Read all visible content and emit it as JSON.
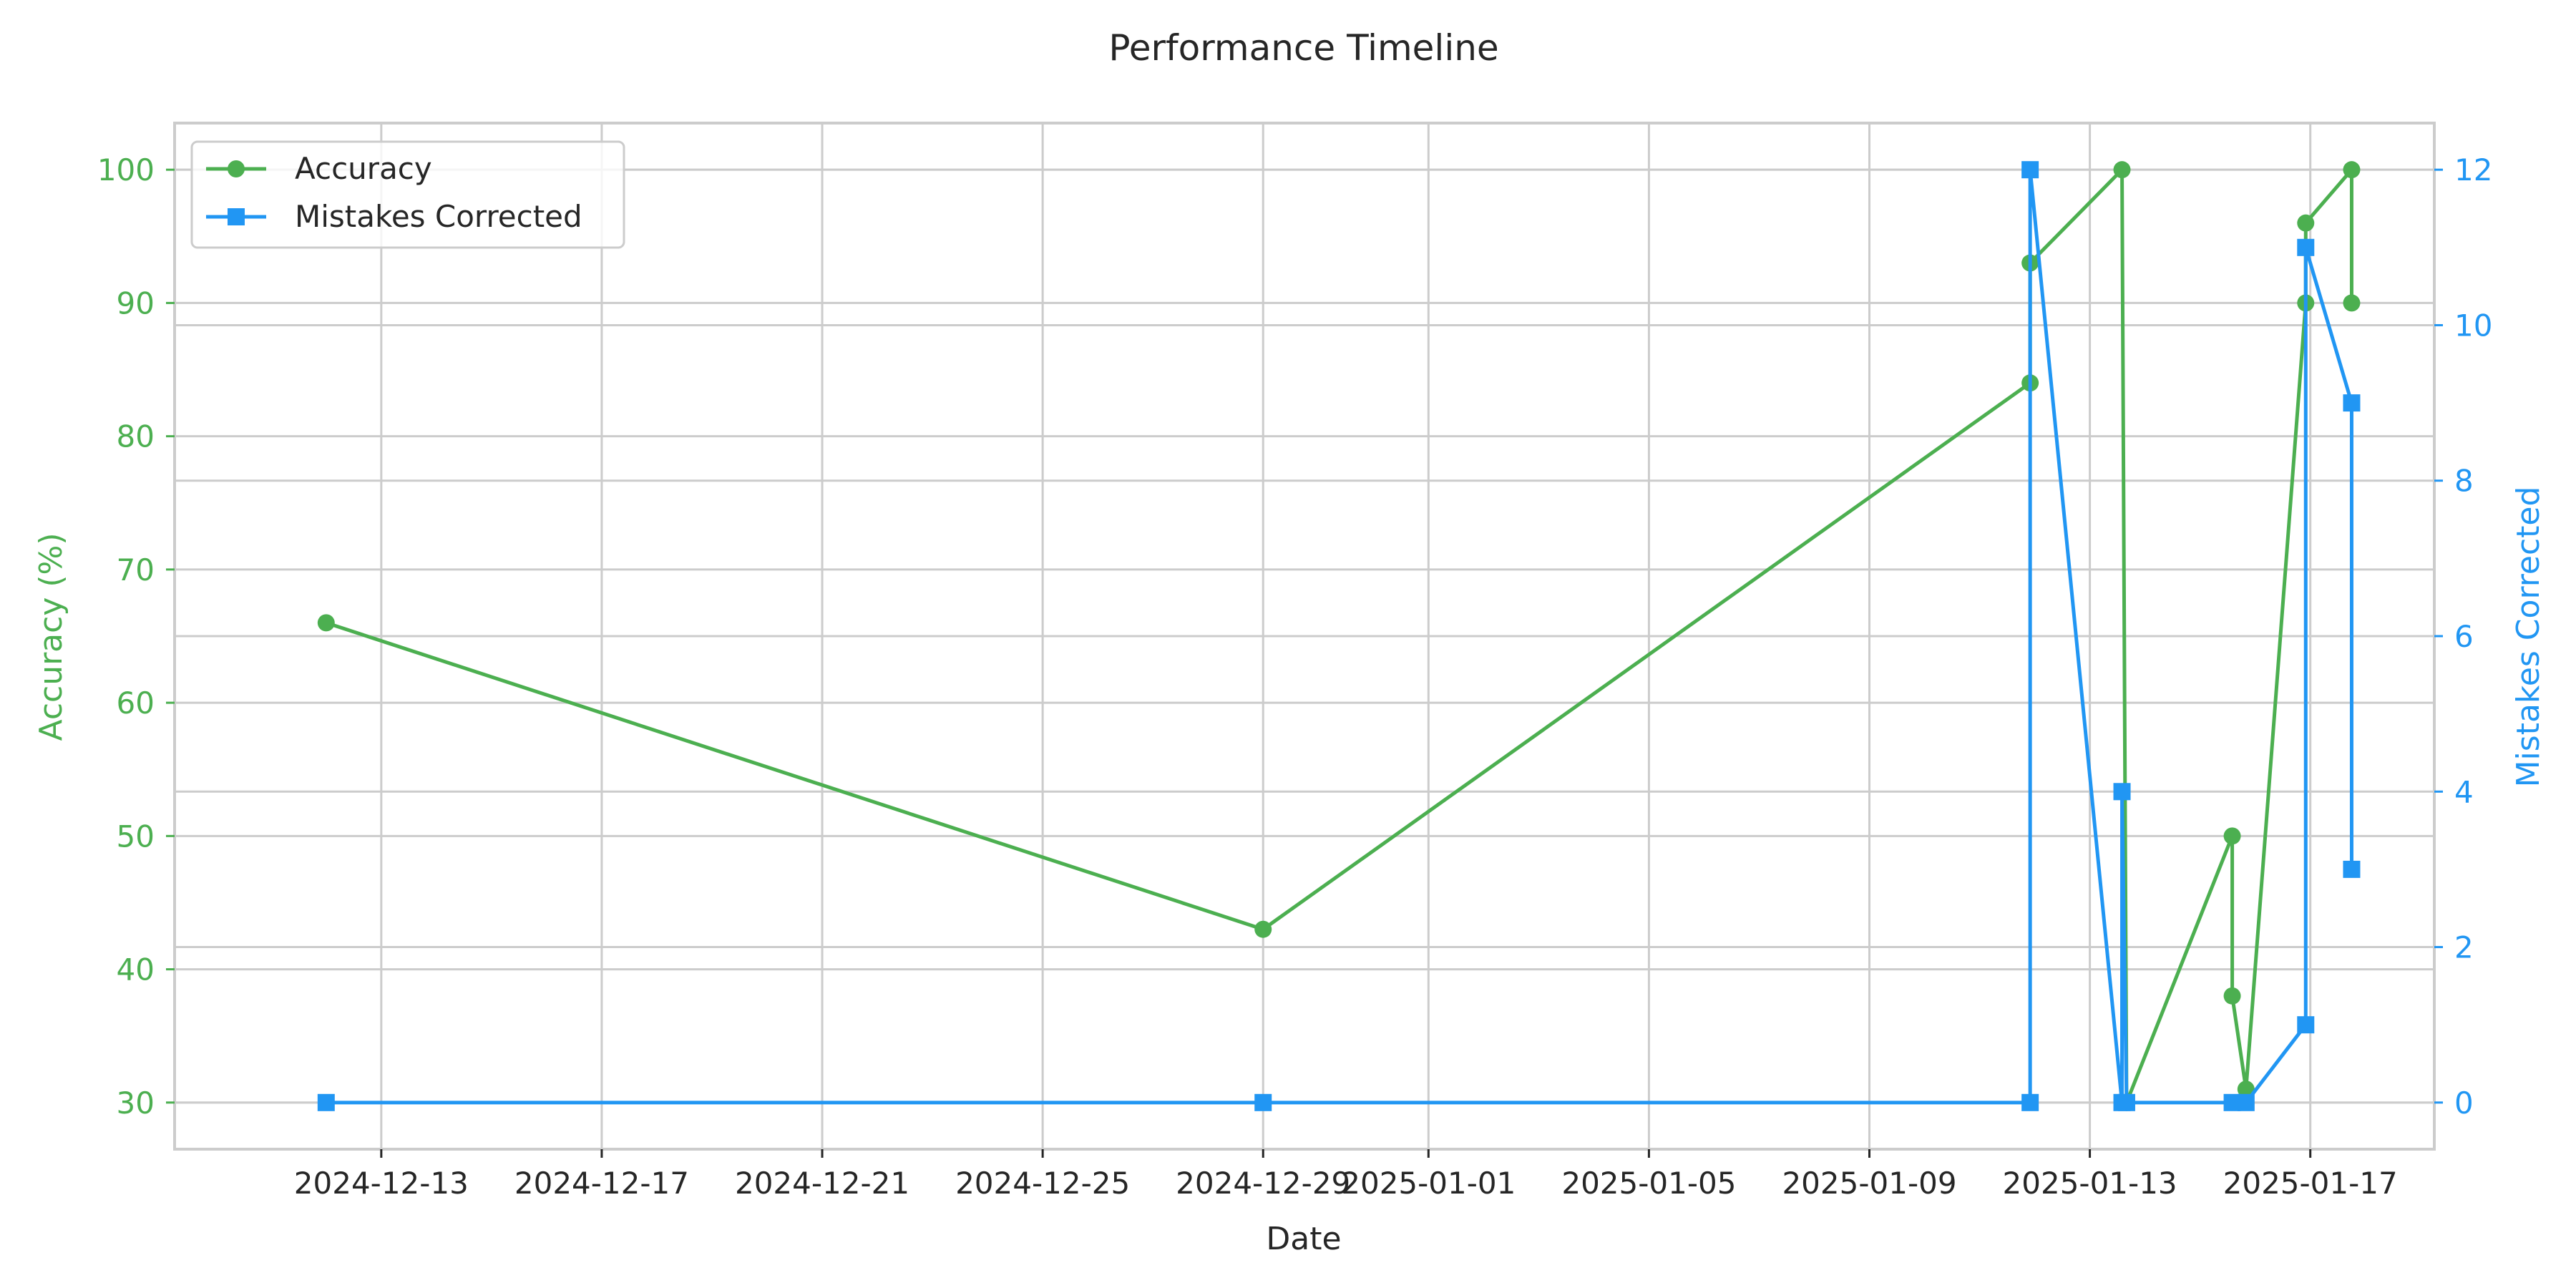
{
  "chart_data": {
    "type": "line",
    "title": "Performance Timeline",
    "xlabel": "Date",
    "ylabel_left": "Accuracy (%)",
    "ylabel_right": "Mistakes Corrected",
    "x_ticks": [
      "2024-12-13",
      "2024-12-17",
      "2024-12-21",
      "2024-12-25",
      "2024-12-29",
      "2025-01-01",
      "2025-01-05",
      "2025-01-09",
      "2025-01-13",
      "2025-01-17"
    ],
    "xlim": [
      "2024-12-09T06:00",
      "2025-01-19T06:00"
    ],
    "y_left_ticks": [
      30,
      40,
      50,
      60,
      70,
      80,
      90,
      100
    ],
    "y_left_lim": [
      26.5,
      103.5
    ],
    "y_right_ticks": [
      0,
      2,
      4,
      6,
      8,
      10,
      12
    ],
    "y_right_lim": [
      -0.6,
      12.6
    ],
    "grid": true,
    "legend_position": "top-left",
    "series": [
      {
        "name": "Accuracy",
        "axis": "left",
        "marker": "circle",
        "color": "#4caf50",
        "x": [
          "2024-12-12T00:00",
          "2024-12-29T00:00",
          "2025-01-11T22:00",
          "2025-01-11T22:00",
          "2025-01-13T14:00",
          "2025-01-13T16:00",
          "2025-01-15T14:00",
          "2025-01-15T14:00",
          "2025-01-15T20:00",
          "2025-01-16T22:00",
          "2025-01-16T22:00",
          "2025-01-17T18:00",
          "2025-01-17T18:00"
        ],
        "values": [
          66,
          43,
          84,
          93,
          100,
          30,
          50,
          38,
          31,
          90,
          96,
          100,
          90
        ]
      },
      {
        "name": "Mistakes Corrected",
        "axis": "right",
        "marker": "square",
        "color": "#2196f3",
        "x": [
          "2024-12-12T00:00",
          "2024-12-29T00:00",
          "2025-01-11T22:00",
          "2025-01-11T22:00",
          "2025-01-13T14:00",
          "2025-01-13T14:00",
          "2025-01-13T16:00",
          "2025-01-15T14:00",
          "2025-01-15T20:00",
          "2025-01-16T22:00",
          "2025-01-16T22:00",
          "2025-01-17T18:00",
          "2025-01-17T18:00"
        ],
        "values": [
          0,
          0,
          0,
          12,
          0,
          4,
          0,
          0,
          0,
          1,
          11,
          9,
          3
        ]
      }
    ]
  }
}
